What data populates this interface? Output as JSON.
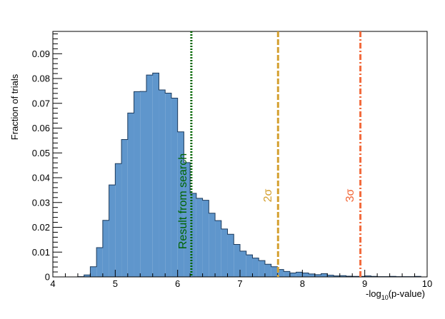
{
  "chart_data": {
    "type": "bar",
    "histogram": true,
    "xlabel_main": "-log",
    "xlabel_sub": "10",
    "xlabel_tail": "(p-value)",
    "ylabel": "Fraction of trials",
    "xlim": [
      4,
      10
    ],
    "ylim": [
      0,
      0.099
    ],
    "x_ticks": [
      4,
      5,
      6,
      7,
      8,
      9,
      10
    ],
    "y_ticks": [
      0,
      0.01,
      0.02,
      0.03,
      0.04,
      0.05,
      0.06,
      0.07,
      0.08,
      0.09
    ],
    "y_tick_labels": [
      "0",
      "0.01",
      "0.02",
      "0.03",
      "0.04",
      "0.05",
      "0.06",
      "0.07",
      "0.08",
      "0.09"
    ],
    "bin_width": 0.1,
    "bin_starts": [
      4.4,
      4.5,
      4.6,
      4.7,
      4.8,
      4.9,
      5.0,
      5.1,
      5.2,
      5.3,
      5.4,
      5.5,
      5.6,
      5.7,
      5.8,
      5.9,
      6.0,
      6.1,
      6.2,
      6.3,
      6.4,
      6.5,
      6.6,
      6.7,
      6.8,
      6.9,
      7.0,
      7.1,
      7.2,
      7.3,
      7.4,
      7.5,
      7.6,
      7.7,
      7.8,
      7.9,
      8.0,
      8.1,
      8.2,
      8.3,
      8.4,
      8.5,
      8.6,
      8.7,
      8.8,
      8.9,
      9.0,
      9.1,
      9.2,
      9.3,
      9.4,
      9.5,
      9.6,
      9.7,
      9.8
    ],
    "values": [
      0.0001,
      0.0008,
      0.0041,
      0.0118,
      0.0228,
      0.0371,
      0.0457,
      0.0554,
      0.0661,
      0.0747,
      0.0748,
      0.0814,
      0.0822,
      0.0754,
      0.0741,
      0.0721,
      0.0585,
      0.0461,
      0.0337,
      0.0317,
      0.0309,
      0.0257,
      0.0227,
      0.0193,
      0.0172,
      0.0131,
      0.0104,
      0.0089,
      0.0076,
      0.0066,
      0.0051,
      0.0041,
      0.003,
      0.0022,
      0.0016,
      0.0019,
      0.0016,
      0.0012,
      0.0009,
      0.0013,
      0.0007,
      0.0004,
      0.0005,
      0.0003,
      0.0002,
      0.0002,
      0.0004,
      0.0002,
      0.0001,
      0.0001,
      0.0002,
      0.0001,
      0.0001,
      0.0001,
      0.0002
    ],
    "bar_color": "#5f96cc",
    "bar_edge_color": "#1b3a5c",
    "vlines": [
      {
        "name": "result",
        "x": 6.22,
        "label": "Result from search",
        "color": "#006400",
        "style": "dotted"
      },
      {
        "name": "2sigma",
        "x": 7.61,
        "label": "2σ",
        "color": "#d4a030",
        "style": "dashed"
      },
      {
        "name": "3sigma",
        "x": 8.93,
        "label": "3σ",
        "color": "#f26a3c",
        "style": "dashdot"
      }
    ]
  }
}
